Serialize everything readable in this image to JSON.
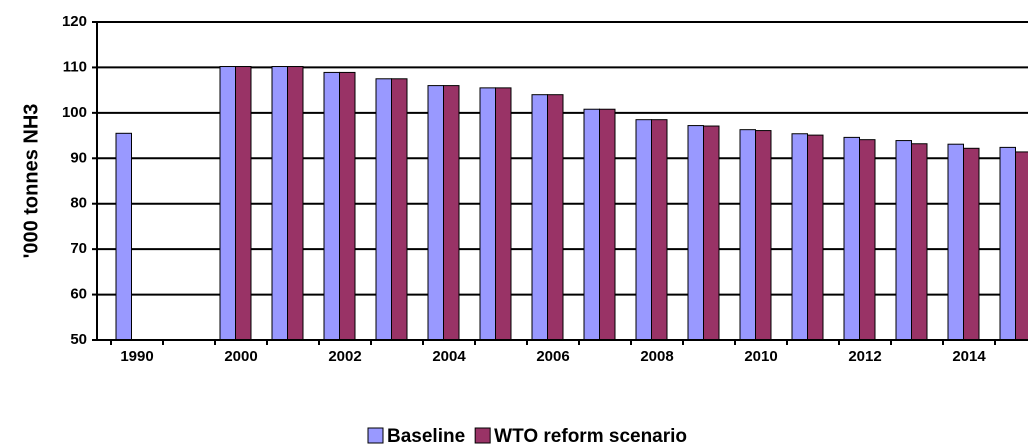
{
  "chart_data": {
    "type": "bar",
    "y_label": "'000 tonnes NH3",
    "categories": [
      "1990",
      null,
      "2000",
      null,
      "2002",
      null,
      "2004",
      null,
      "2006",
      null,
      "2008",
      null,
      "2010",
      null,
      "2012",
      null,
      "2014",
      null
    ],
    "series": [
      {
        "name": "Baseline",
        "color": "#9999ff",
        "values": [
          95.5,
          null,
          110.2,
          110.2,
          108.9,
          107.5,
          106,
          105.5,
          104,
          100.8,
          98.5,
          97.2,
          96.3,
          95.4,
          94.6,
          93.9,
          93.1,
          92.4
        ]
      },
      {
        "name": "WTO reform scenario",
        "color": "#993366",
        "values": [
          null,
          null,
          110.2,
          110.2,
          108.9,
          107.5,
          106,
          105.5,
          104,
          100.8,
          98.5,
          97.1,
          96.1,
          95.1,
          94.1,
          93.2,
          92.2,
          91.4
        ]
      }
    ],
    "ylim": [
      50,
      120
    ],
    "yticks": [
      50,
      60,
      70,
      80,
      90,
      100,
      110,
      120
    ],
    "grid": true,
    "legend": "bottom"
  }
}
